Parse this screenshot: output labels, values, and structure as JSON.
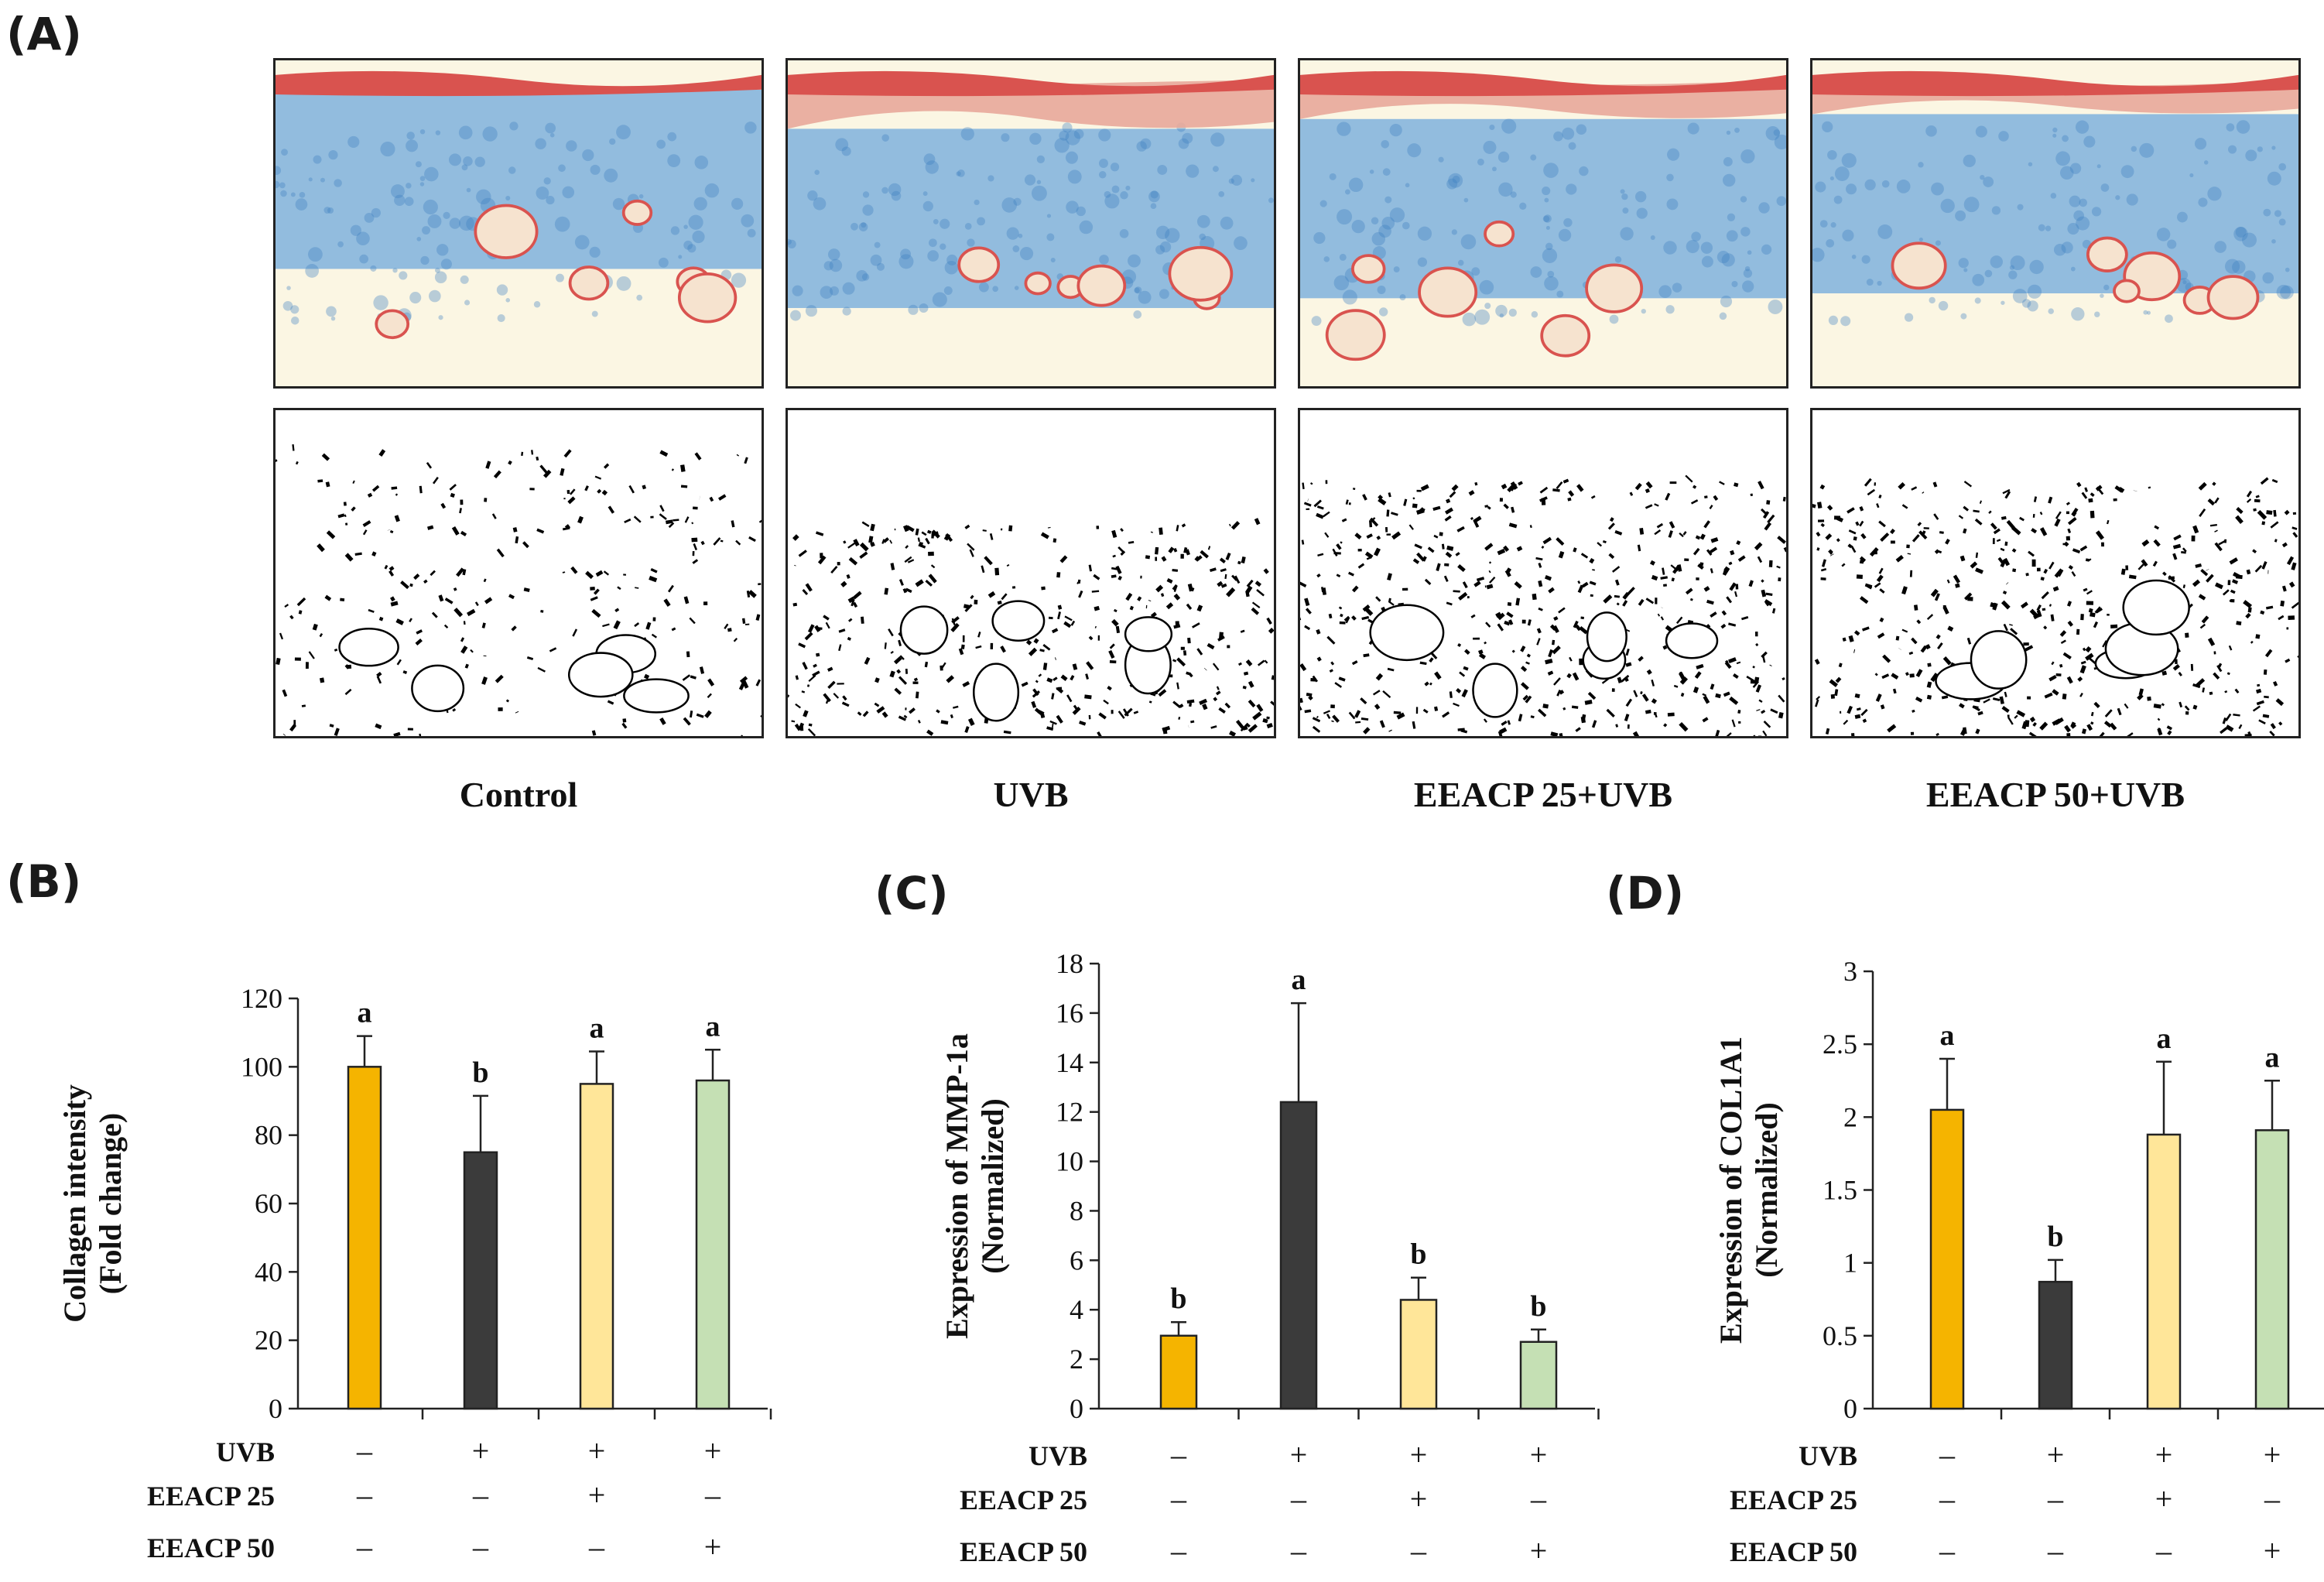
{
  "panel_labels": {
    "A": "(A)",
    "B": "(B)",
    "C": "(C)",
    "D": "(D)"
  },
  "histology": {
    "groups": [
      "Control",
      "UVB",
      "EEACP 25+UVB",
      "EEACP 50+UVB"
    ]
  },
  "colors": {
    "control": "#F5B400",
    "uvb": "#3B3B3B",
    "eeacp25": "#FFE699",
    "eeacp50": "#C5E0B4",
    "stain_red": "#D9534F",
    "stain_blue": "#6FA8DC",
    "stain_bg": "#FBF6E3"
  },
  "treatment_table": {
    "rows": [
      {
        "label": "UVB",
        "values": [
          "–",
          "+",
          "+",
          "+"
        ]
      },
      {
        "label": "EEACP 25",
        "values": [
          "–",
          "–",
          "+",
          "–"
        ]
      },
      {
        "label": "EEACP 50",
        "values": [
          "–",
          "–",
          "–",
          "+"
        ]
      }
    ]
  },
  "chart_data": [
    {
      "type": "bar",
      "panel": "(B)",
      "categories": [
        "Control",
        "UVB",
        "EEACP 25+UVB",
        "EEACP 50+UVB"
      ],
      "values": [
        100,
        75,
        95,
        96
      ],
      "errors": [
        9,
        16.5,
        9.5,
        9
      ],
      "sig_letters": [
        "a",
        "b",
        "a",
        "a"
      ],
      "ylabel": [
        "Collagen intensity",
        "(Fold change)"
      ],
      "ylim": [
        0,
        120
      ],
      "yticks": [
        0,
        20,
        40,
        60,
        80,
        100,
        120
      ]
    },
    {
      "type": "bar",
      "panel": "(C)",
      "categories": [
        "Control",
        "UVB",
        "EEACP 25+UVB",
        "EEACP 50+UVB"
      ],
      "values": [
        2.95,
        12.4,
        4.4,
        2.7
      ],
      "errors": [
        0.55,
        4.0,
        0.9,
        0.5
      ],
      "sig_letters": [
        "b",
        "a",
        "b",
        "b"
      ],
      "ylabel": [
        "Expression of MMP-1a",
        "(Normalized)"
      ],
      "ylim": [
        0,
        18
      ],
      "yticks": [
        0,
        2,
        4,
        6,
        8,
        10,
        12,
        14,
        16,
        18
      ]
    },
    {
      "type": "bar",
      "panel": "(D)",
      "categories": [
        "Control",
        "UVB",
        "EEACP 25+UVB",
        "EEACP 50+UVB"
      ],
      "values": [
        2.05,
        0.87,
        1.88,
        1.91
      ],
      "errors": [
        0.35,
        0.15,
        0.5,
        0.34
      ],
      "sig_letters": [
        "a",
        "b",
        "a",
        "a"
      ],
      "ylabel": [
        "Expression of COL1A1",
        "(Normalized)"
      ],
      "ylim": [
        0,
        3
      ],
      "yticks": [
        0,
        0.5,
        1,
        1.5,
        2,
        2.5,
        3
      ]
    }
  ]
}
